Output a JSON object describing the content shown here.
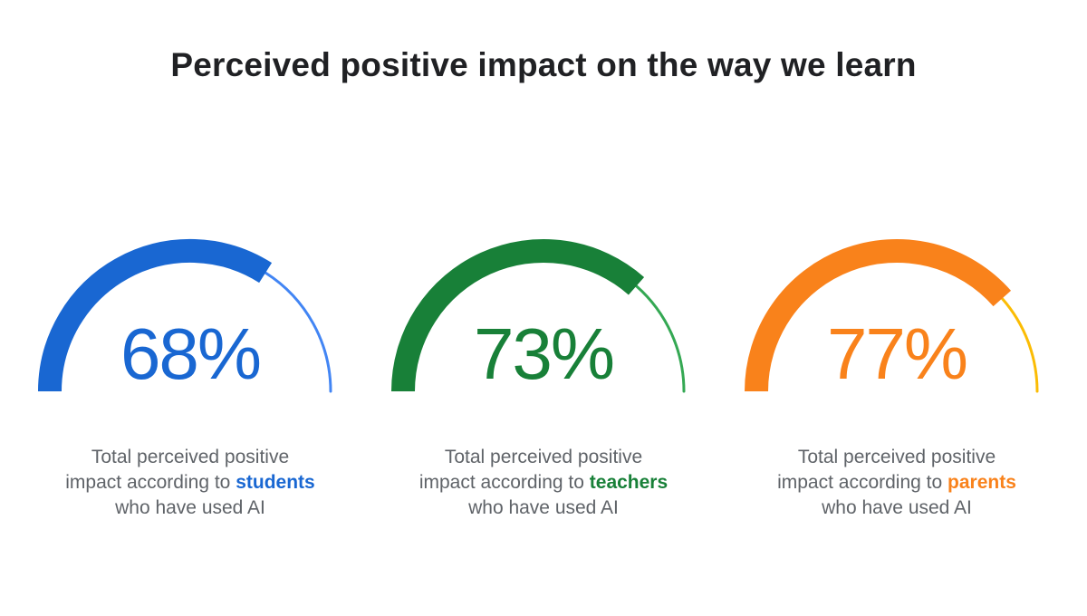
{
  "title": "Perceived positive impact on the way we learn",
  "chart_data": {
    "type": "gauge",
    "title": "Perceived positive impact on the way we learn",
    "unit": "%",
    "range": [
      0,
      100
    ],
    "layout": "three semicircular half-donut gauges in a row, value label centered inside each arc, caption below",
    "series": [
      {
        "group": "students",
        "value": 68,
        "display": "68%",
        "color": "#1967D2",
        "remainder_color": "#4285F4"
      },
      {
        "group": "teachers",
        "value": 73,
        "display": "73%",
        "color": "#188038",
        "remainder_color": "#34A853"
      },
      {
        "group": "parents",
        "value": 77,
        "display": "77%",
        "color": "#F9821B",
        "remainder_color": "#FBBC04"
      }
    ]
  },
  "cards": [
    {
      "caption_line1": "Total perceived positive",
      "caption_line2_prefix": "impact according to ",
      "caption_highlight": "students",
      "caption_line3": "who have used AI"
    },
    {
      "caption_line1": "Total perceived positive",
      "caption_line2_prefix": "impact according to ",
      "caption_highlight": "teachers",
      "caption_line3": "who have used AI"
    },
    {
      "caption_line1": "Total perceived positive",
      "caption_line2_prefix": "impact according to ",
      "caption_highlight": "parents",
      "caption_line3": "who have used AI"
    }
  ],
  "colors": {
    "background": "#FFFFFF",
    "title_text": "#202124",
    "caption_text": "#5F6368"
  }
}
